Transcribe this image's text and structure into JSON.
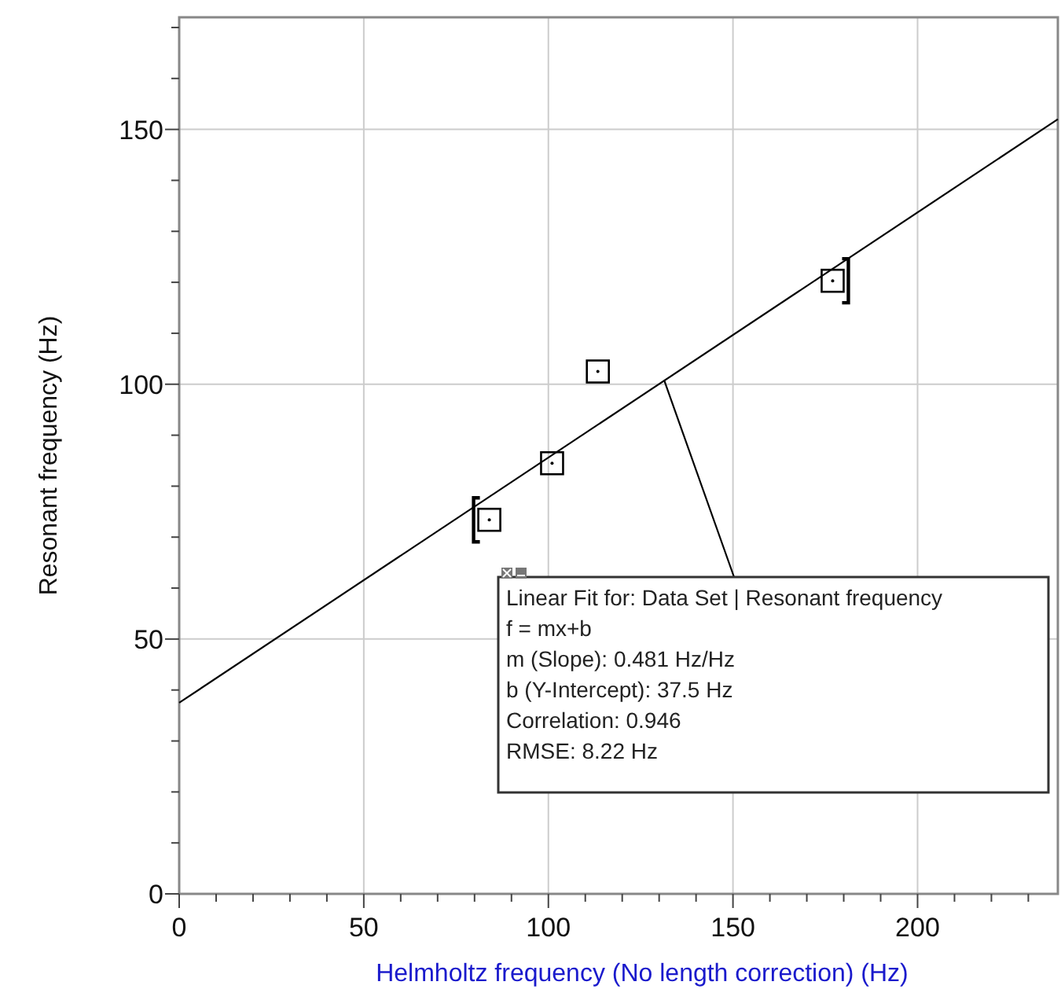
{
  "chart_data": {
    "type": "scatter",
    "xlabel": "Helmholtz frequency (No length correction)  (Hz)",
    "ylabel": "Resonant frequency (Hz)",
    "xlim": [
      0,
      238
    ],
    "ylim": [
      0,
      172
    ],
    "xticks": [
      0,
      {
        "value": 10,
        "label": null
      },
      {
        "value": 20,
        "label": null
      },
      {
        "value": 30,
        "label": null
      },
      {
        "value": 40,
        "label": null
      },
      50,
      {
        "value": 60,
        "label": null
      },
      {
        "value": 70,
        "label": null
      },
      {
        "value": 80,
        "label": null
      },
      {
        "value": 90,
        "label": null
      },
      100,
      {
        "value": 110,
        "label": null
      },
      {
        "value": 120,
        "label": null
      },
      {
        "value": 130,
        "label": null
      },
      {
        "value": 140,
        "label": null
      },
      150,
      {
        "value": 160,
        "label": null
      },
      {
        "value": 170,
        "label": null
      },
      {
        "value": 180,
        "label": null
      },
      {
        "value": 190,
        "label": null
      },
      200,
      {
        "value": 210,
        "label": null
      },
      {
        "value": 220,
        "label": null
      },
      {
        "value": 230,
        "label": null
      }
    ],
    "yticks": [
      0,
      {
        "value": 10,
        "label": null
      },
      {
        "value": 20,
        "label": null
      },
      {
        "value": 30,
        "label": null
      },
      {
        "value": 40,
        "label": null
      },
      50,
      {
        "value": 60,
        "label": null
      },
      {
        "value": 70,
        "label": null
      },
      {
        "value": 80,
        "label": null
      },
      {
        "value": 90,
        "label": null
      },
      100,
      {
        "value": 110,
        "label": null
      },
      {
        "value": 120,
        "label": null
      },
      {
        "value": 130,
        "label": null
      },
      {
        "value": 140,
        "label": null
      },
      150,
      {
        "value": 160,
        "label": null
      },
      {
        "value": 170,
        "label": null
      }
    ],
    "grid": true,
    "marker": "square",
    "series": [
      {
        "color": "#000000",
        "x": [
          84,
          101,
          113.4,
          177
        ],
        "values": [
          73.4,
          84.5,
          102.5,
          120.3
        ]
      },
      {
        "type": "line",
        "color": "#000000",
        "line_style": "solid",
        "marker": "none",
        "x": [
          0,
          238
        ],
        "values": [
          37.5,
          152
        ]
      }
    ],
    "annotations": [
      {
        "text": "Linear Fit for: Data Set | Resonant frequency\nf = mx+b\nm (Slope): 0.481 Hz/Hz\nb (Y-Intercept): 37.5 Hz\nCorrelation: 0.946\nRMSE: 8.22 Hz",
        "x": 131.4,
        "y": 100.7
      }
    ]
  }
}
